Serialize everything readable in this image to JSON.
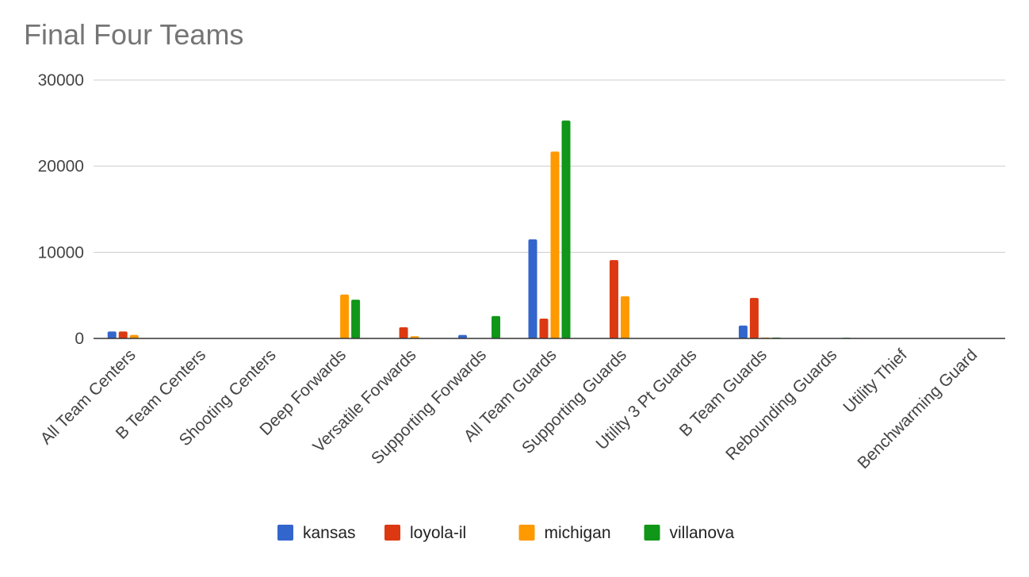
{
  "chart_data": {
    "type": "bar",
    "title": "Final Four Teams",
    "xlabel": "",
    "ylabel": "",
    "ylim": [
      0,
      30000
    ],
    "yticks": [
      0,
      10000,
      20000,
      30000
    ],
    "grid": true,
    "legend_position": "bottom",
    "categories": [
      "All Team Centers",
      "B Team Centers",
      "Shooting Centers",
      "Deep Forwards",
      "Versatile Forwards",
      "Supporting Forwards",
      "All Team Guards",
      "Supporting Guards",
      "Utility 3 Pt Guards",
      "B Team Guards",
      "Rebounding Guards",
      "Utility Thief",
      "Benchwarming Guard"
    ],
    "series": [
      {
        "name": "kansas",
        "color": "#3366cc",
        "values": [
          800,
          0,
          0,
          0,
          0,
          400,
          11500,
          0,
          0,
          1500,
          50,
          0,
          0
        ]
      },
      {
        "name": "loyola-il",
        "color": "#dc3912",
        "values": [
          800,
          50,
          0,
          0,
          1300,
          50,
          2300,
          9100,
          0,
          4700,
          0,
          0,
          0
        ]
      },
      {
        "name": "michigan",
        "color": "#ff9900",
        "values": [
          400,
          0,
          0,
          5100,
          250,
          0,
          21700,
          4900,
          0,
          100,
          0,
          0,
          0
        ]
      },
      {
        "name": "villanova",
        "color": "#109618",
        "values": [
          0,
          0,
          0,
          4500,
          0,
          2600,
          25300,
          0,
          0,
          100,
          80,
          0,
          0
        ]
      }
    ]
  }
}
